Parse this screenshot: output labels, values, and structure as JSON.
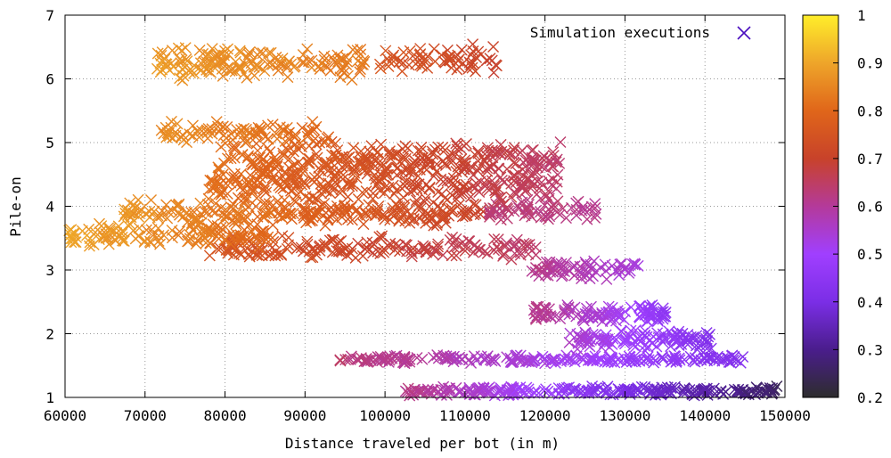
{
  "chart_data": {
    "type": "scatter",
    "title": "",
    "xlabel": "Distance traveled per bot (in m)",
    "ylabel": "Pile-on",
    "xlim": [
      60000,
      150000
    ],
    "ylim": [
      1,
      7
    ],
    "x_ticks": [
      "60000",
      "70000",
      "80000",
      "90000",
      "100000",
      "110000",
      "120000",
      "130000",
      "140000",
      "150000"
    ],
    "y_ticks": [
      "1",
      "2",
      "3",
      "4",
      "5",
      "6",
      "7"
    ],
    "grid": true,
    "legend": {
      "label": "Simulation executions",
      "position": "top-right",
      "marker": "x",
      "color": "#4b0fbf"
    },
    "colorbar": {
      "range": [
        0.2,
        1
      ],
      "ticks": [
        "0.2",
        "0.3",
        "0.4",
        "0.5",
        "0.6",
        "0.7",
        "0.8",
        "0.9",
        "1"
      ],
      "palette": [
        "#2d2d2d",
        "#4a1d8c",
        "#7b2ee6",
        "#a03fff",
        "#b43a9a",
        "#c8422a",
        "#e0661a",
        "#eea52a",
        "#ffee2a"
      ]
    },
    "clusters": [
      {
        "y": 1.1,
        "x_start": 102500,
        "x_end": 149500,
        "c_start": 0.62,
        "c_end": 0.25,
        "y_spread": 0.06,
        "n": 260
      },
      {
        "y": 1.6,
        "x_start": 93500,
        "x_end": 145000,
        "c_start": 0.64,
        "c_end": 0.42,
        "y_spread": 0.05,
        "n": 230
      },
      {
        "y": 1.9,
        "x_start": 123000,
        "x_end": 141000,
        "c_start": 0.55,
        "c_end": 0.42,
        "y_spread": 0.13,
        "n": 120
      },
      {
        "y": 2.3,
        "x_start": 118500,
        "x_end": 135500,
        "c_start": 0.62,
        "c_end": 0.45,
        "y_spread": 0.12,
        "n": 110
      },
      {
        "y": 3.0,
        "x_start": 118000,
        "x_end": 132000,
        "c_start": 0.62,
        "c_end": 0.53,
        "y_spread": 0.12,
        "n": 70
      },
      {
        "y": 3.35,
        "x_start": 78000,
        "x_end": 119000,
        "c_start": 0.76,
        "c_end": 0.64,
        "y_spread": 0.15,
        "n": 180
      },
      {
        "y": 3.55,
        "x_start": 60500,
        "x_end": 86000,
        "c_start": 0.9,
        "c_end": 0.8,
        "y_spread": 0.15,
        "n": 130
      },
      {
        "y": 3.9,
        "x_start": 66500,
        "x_end": 113000,
        "c_start": 0.88,
        "c_end": 0.7,
        "y_spread": 0.18,
        "n": 250
      },
      {
        "y": 3.95,
        "x_start": 113000,
        "x_end": 126500,
        "c_start": 0.64,
        "c_end": 0.61,
        "y_spread": 0.15,
        "n": 70
      },
      {
        "y": 4.35,
        "x_start": 78000,
        "x_end": 122000,
        "c_start": 0.82,
        "c_end": 0.64,
        "y_spread": 0.22,
        "n": 280
      },
      {
        "y": 4.75,
        "x_start": 79000,
        "x_end": 122000,
        "c_start": 0.82,
        "c_end": 0.64,
        "y_spread": 0.2,
        "n": 260
      },
      {
        "y": 5.15,
        "x_start": 72000,
        "x_end": 93000,
        "c_start": 0.86,
        "c_end": 0.8,
        "y_spread": 0.15,
        "n": 90
      },
      {
        "y": 6.25,
        "x_start": 71500,
        "x_end": 97500,
        "c_start": 0.88,
        "c_end": 0.83,
        "y_spread": 0.2,
        "n": 160
      },
      {
        "y": 6.3,
        "x_start": 99000,
        "x_end": 114000,
        "c_start": 0.76,
        "c_end": 0.7,
        "y_spread": 0.2,
        "n": 70
      }
    ]
  }
}
